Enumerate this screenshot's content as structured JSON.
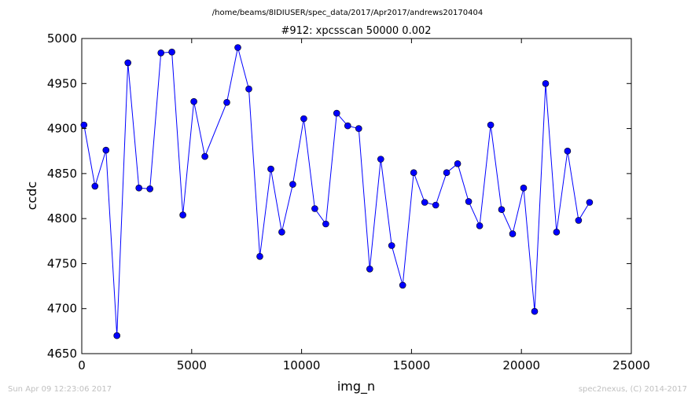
{
  "chart_data": {
    "type": "line",
    "suptitle": "/home/beams/8IDIUSER/spec_data/2017/Apr2017/andrews20170404",
    "title": "#912: xpcsscan 50000 0.002",
    "xlabel": "img_n",
    "ylabel": "ccdc",
    "xlim": [
      0,
      25000
    ],
    "ylim": [
      4650,
      5000
    ],
    "xticks": [
      0,
      5000,
      10000,
      15000,
      20000,
      25000
    ],
    "yticks": [
      4650,
      4700,
      4750,
      4800,
      4850,
      4900,
      4950,
      5000
    ],
    "grid": false,
    "legend": "none",
    "line_color": "#0000ff",
    "marker_color": "#0000ff",
    "series": [
      {
        "x": [
          100,
          600,
          1100,
          1600,
          2100,
          2600,
          3100,
          3600,
          4100,
          4600,
          5100,
          5600,
          6600,
          7100,
          7600,
          8100,
          8600,
          9100,
          9600,
          10100,
          10600,
          11100,
          11600,
          12100,
          12600,
          13100,
          13600,
          14100,
          14600,
          15100,
          15600,
          16100,
          16600,
          17100,
          17600,
          18100,
          18600,
          19100,
          19600,
          20100,
          20600,
          21100,
          21600,
          22100,
          22600,
          23100
        ],
        "y": [
          4904,
          4836,
          4876,
          4670,
          4973,
          4834,
          4833,
          4984,
          4985,
          4804,
          4930,
          4869,
          4929,
          4990,
          4944,
          4758,
          4855,
          4785,
          4838,
          4911,
          4811,
          4794,
          4917,
          4903,
          4900,
          4744,
          4866,
          4770,
          4726,
          4851,
          4818,
          4815,
          4851,
          4861,
          4819,
          4792,
          4904,
          4810,
          4783,
          4834,
          4697,
          4950,
          4785,
          4875,
          4798,
          4818
        ]
      }
    ]
  },
  "footer": {
    "left": "Sun Apr 09 12:23:06 2017",
    "right": "spec2nexus, (C) 2014-2017"
  }
}
